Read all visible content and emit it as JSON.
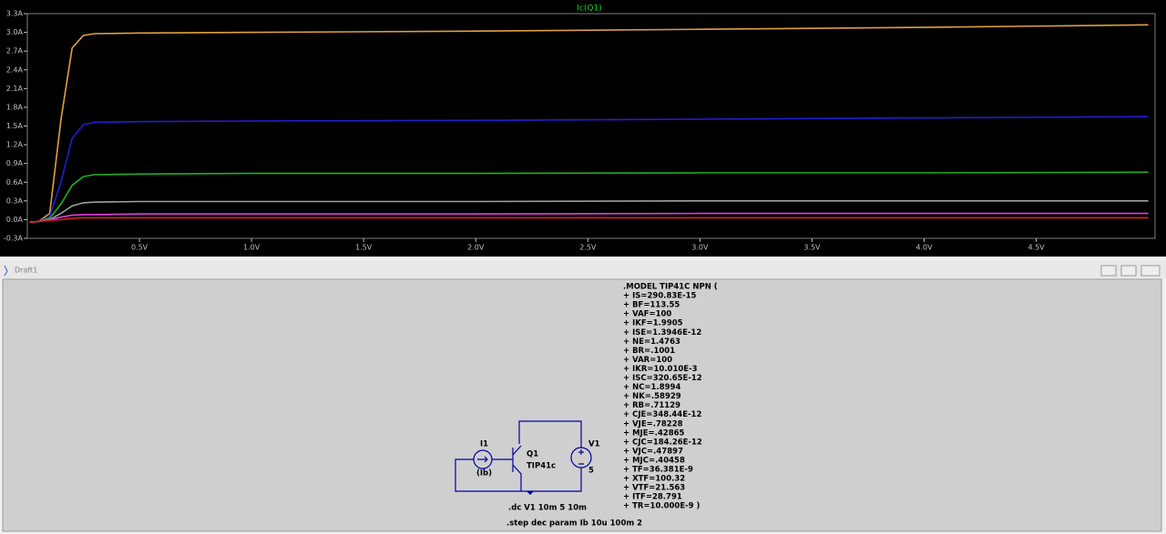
{
  "chart_data": {
    "type": "line",
    "title": "Ic(Q1)",
    "x": [
      0.01,
      0.05,
      0.1,
      0.15,
      0.2,
      0.25,
      0.3,
      0.5,
      1,
      2,
      3,
      4,
      5
    ],
    "series": [
      {
        "color": "#e0a040",
        "values": [
          -0.04,
          -0.03,
          0.1,
          1.6,
          2.75,
          2.95,
          2.98,
          2.99,
          3.0,
          3.02,
          3.05,
          3.08,
          3.12
        ]
      },
      {
        "color": "#2020d0",
        "values": [
          -0.04,
          -0.03,
          0.05,
          0.6,
          1.3,
          1.52,
          1.56,
          1.57,
          1.58,
          1.59,
          1.61,
          1.63,
          1.65
        ]
      },
      {
        "color": "#20b020",
        "values": [
          -0.04,
          -0.03,
          0.02,
          0.25,
          0.55,
          0.69,
          0.72,
          0.73,
          0.74,
          0.74,
          0.75,
          0.75,
          0.76
        ]
      },
      {
        "color": "#a0a0a0",
        "values": [
          -0.04,
          -0.03,
          0.0,
          0.1,
          0.22,
          0.27,
          0.28,
          0.29,
          0.29,
          0.29,
          0.3,
          0.3,
          0.3
        ]
      },
      {
        "color": "#e040e0",
        "values": [
          -0.04,
          -0.03,
          0.0,
          0.04,
          0.07,
          0.08,
          0.08,
          0.09,
          0.09,
          0.09,
          0.1,
          0.1,
          0.1
        ]
      },
      {
        "color": "#e02020",
        "values": [
          -0.04,
          -0.03,
          -0.01,
          0.0,
          0.02,
          0.03,
          0.03,
          0.03,
          0.03,
          0.03,
          0.03,
          0.03,
          0.03
        ]
      }
    ],
    "xlim": [
      0,
      5.03
    ],
    "xticks": [
      {
        "value": 0.5,
        "label": "0.5V"
      },
      {
        "value": 1.0,
        "label": "1.0V"
      },
      {
        "value": 1.5,
        "label": "1.5V"
      },
      {
        "value": 2.0,
        "label": "2.0V"
      },
      {
        "value": 2.5,
        "label": "2.5V"
      },
      {
        "value": 3.0,
        "label": "3.0V"
      },
      {
        "value": 3.5,
        "label": "3.5V"
      },
      {
        "value": 4.0,
        "label": "4.0V"
      },
      {
        "value": 4.5,
        "label": "4.5V"
      }
    ],
    "ylim": [
      -0.3,
      3.3
    ],
    "yticks": [
      {
        "value": -0.3,
        "label": "-0.3A"
      },
      {
        "value": 0.0,
        "label": "0.0A"
      },
      {
        "value": 0.3,
        "label": "0.3A"
      },
      {
        "value": 0.6,
        "label": "0.6A"
      },
      {
        "value": 0.9,
        "label": "0.9A"
      },
      {
        "value": 1.2,
        "label": "1.2A"
      },
      {
        "value": 1.5,
        "label": "1.5A"
      },
      {
        "value": 1.8,
        "label": "1.8A"
      },
      {
        "value": 2.1,
        "label": "2.1A"
      },
      {
        "value": 2.4,
        "label": "2.4A"
      },
      {
        "value": 2.7,
        "label": "2.7A"
      },
      {
        "value": 3.0,
        "label": "3.0A"
      },
      {
        "value": 3.3,
        "label": "3.3A"
      }
    ]
  },
  "window": {
    "title": "Draft1"
  },
  "schematic": {
    "model_lines": [
      ".MODEL TIP41C NPN (",
      "+ IS=290.83E-15",
      "+ BF=113.55",
      "+ VAF=100",
      "+ IKF=1.9905",
      "+ ISE=1.3946E-12",
      "+ NE=1.4763",
      "+ BR=.1001",
      "+ VAR=100",
      "+ IKR=10.010E-3",
      "+ ISC=320.65E-12",
      "+ NC=1.8994",
      "+ NK=.58929",
      "+ RB=.71129",
      "+ CJE=348.44E-12",
      "+ VJE=.78228",
      "+ MJE=.42865",
      "+ CJC=184.26E-12",
      "+ VJC=.47897",
      "+ MJC=.40458",
      "+ TF=36.381E-9",
      "+ XTF=100.32",
      "+ VTF=21.563",
      "+ ITF=28.791",
      "+ TR=10.000E-9 )"
    ],
    "components": [
      {
        "name": "I1",
        "value": "(Ib)"
      },
      {
        "name": "Q1",
        "value": "TIP41c"
      },
      {
        "name": "V1",
        "value": "5"
      }
    ],
    "directives": [
      ".dc V1 10m 5 10m",
      ".step dec param Ib 10u 100m 2"
    ]
  }
}
